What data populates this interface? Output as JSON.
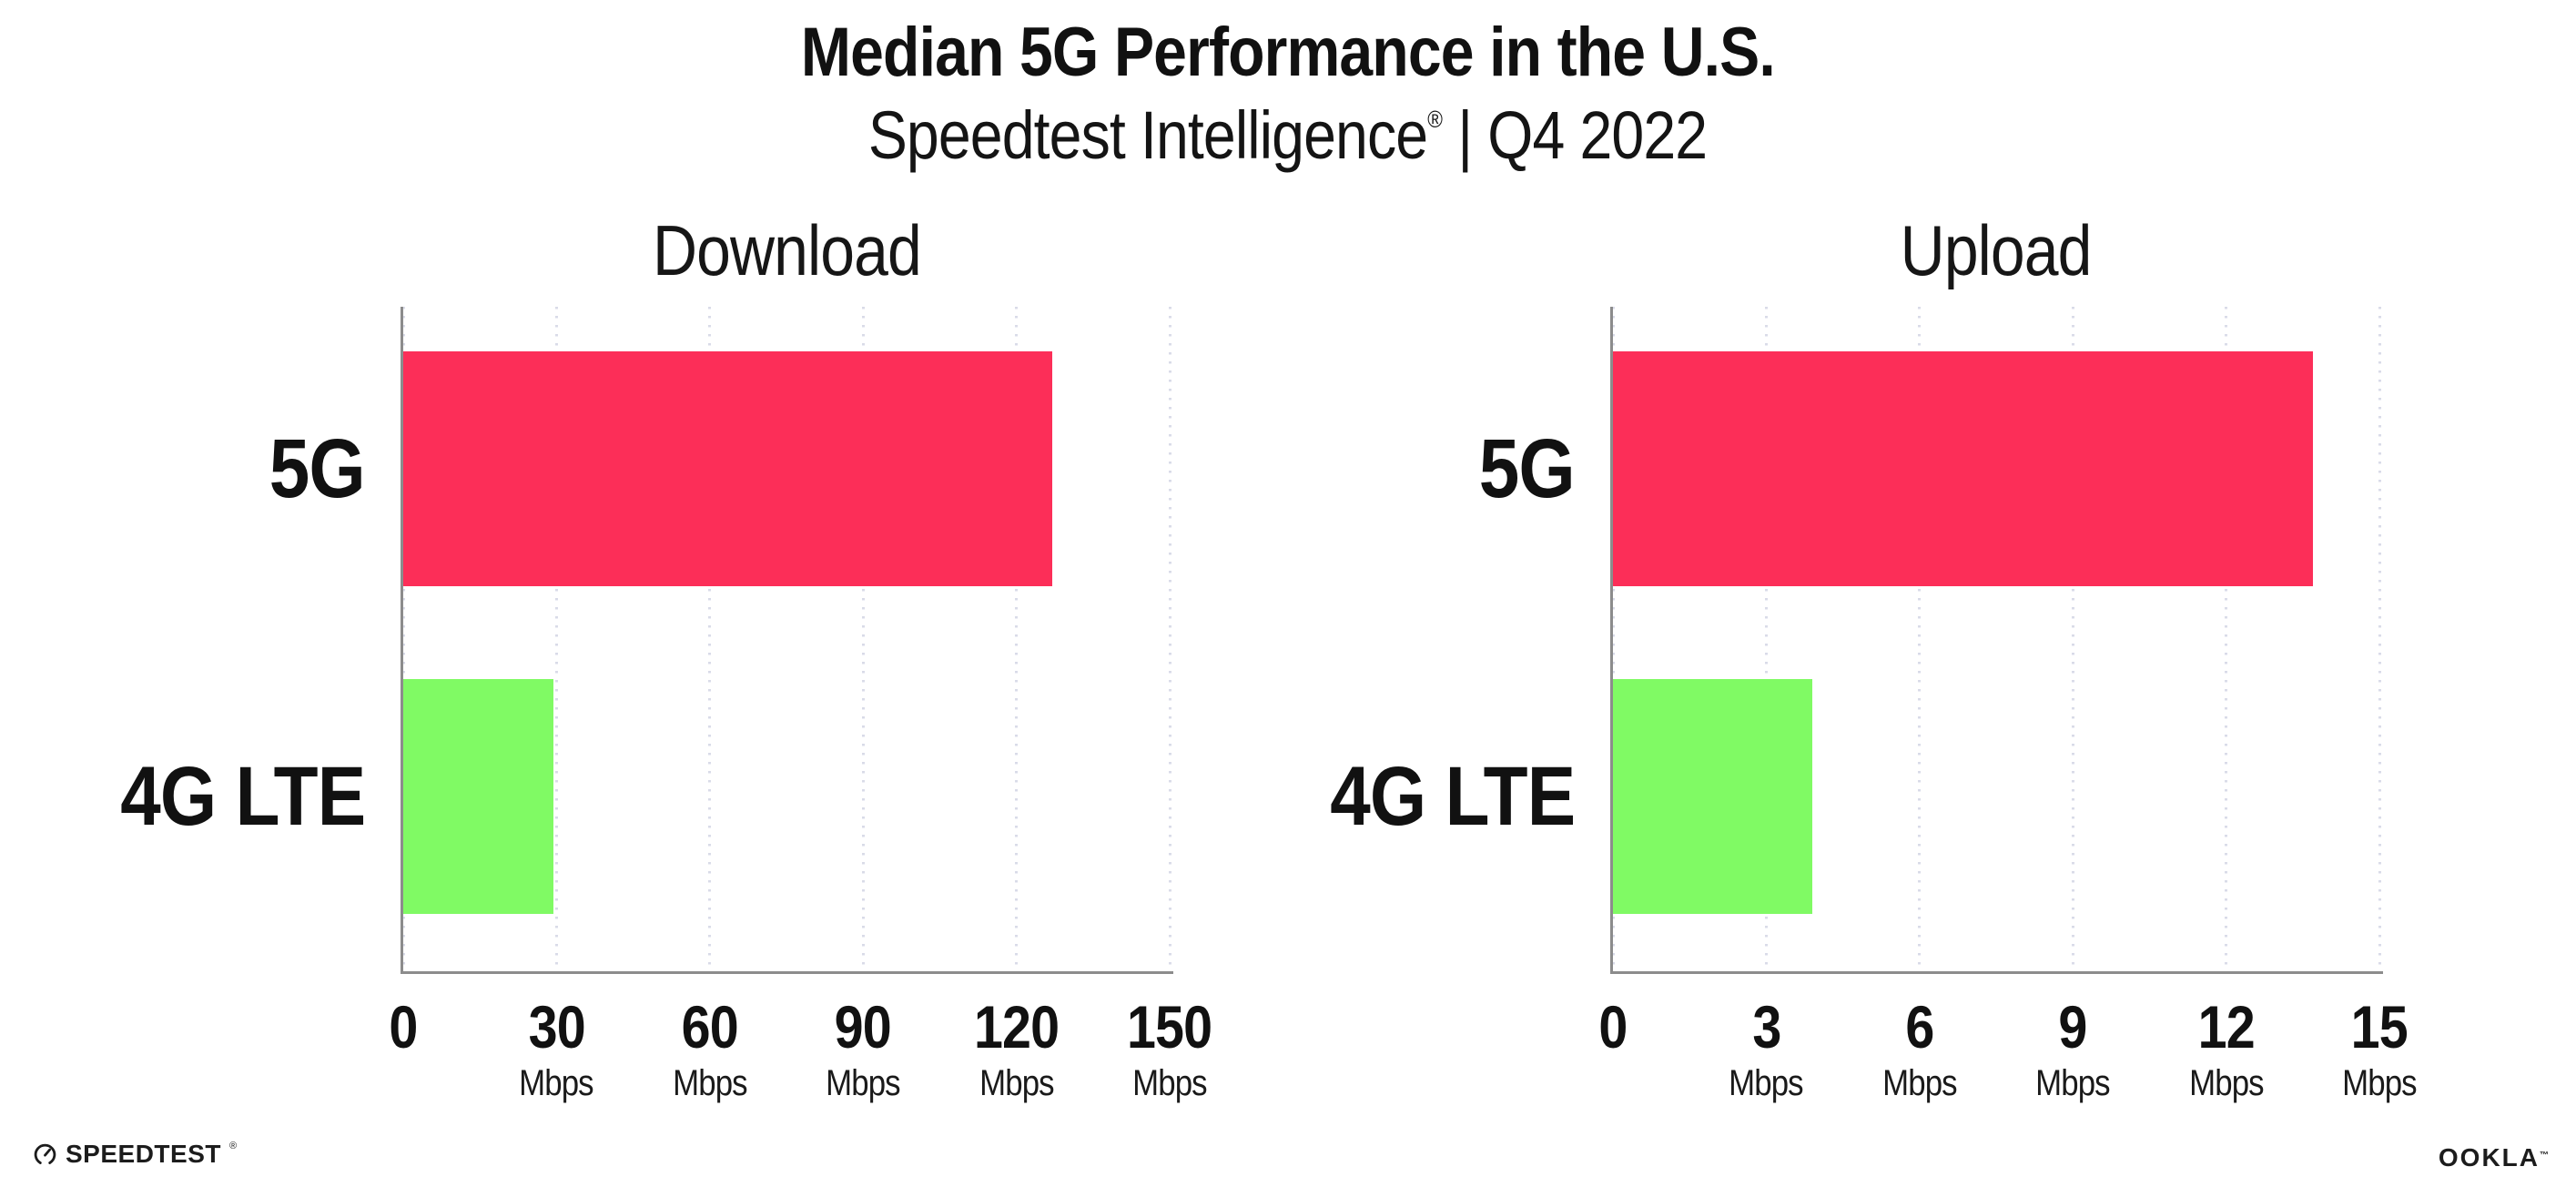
{
  "header": {
    "title": "Median 5G Performance in the U.S.",
    "subtitle_brand": "Speedtest Intelligence",
    "subtitle_reg": "®",
    "subtitle_rest": "| Q4 2022"
  },
  "colors": {
    "bar_5g": "#fc2e58",
    "bar_4g_lte": "#80fa64",
    "axis": "#8c8c8c",
    "gridline_dots": "#d9dbe8",
    "text": "#111111"
  },
  "chart_data": [
    {
      "type": "bar",
      "orientation": "horizontal",
      "title": "Download",
      "categories": [
        "5G",
        "4G LTE"
      ],
      "values": [
        127,
        29.4
      ],
      "unit": "Mbps",
      "xlim": [
        0,
        150
      ],
      "xticks": [
        0,
        30,
        60,
        90,
        120,
        150
      ],
      "xtick_unit_label": "Mbps",
      "grid": "dotted-vertical",
      "legend": "none",
      "bar_colors": [
        "#fc2e58",
        "#80fa64"
      ]
    },
    {
      "type": "bar",
      "orientation": "horizontal",
      "title": "Upload",
      "categories": [
        "5G",
        "4G LTE"
      ],
      "values": [
        13.7,
        3.9
      ],
      "unit": "Mbps",
      "xlim": [
        0,
        15
      ],
      "xticks": [
        0,
        3,
        6,
        9,
        12,
        15
      ],
      "xtick_unit_label": "Mbps",
      "grid": "dotted-vertical",
      "legend": "none",
      "bar_colors": [
        "#fc2e58",
        "#80fa64"
      ]
    }
  ],
  "footer": {
    "speedtest_text": "SPEEDTEST",
    "speedtest_reg": "®",
    "ookla_text": "OOKLA",
    "ookla_reg": "™"
  }
}
